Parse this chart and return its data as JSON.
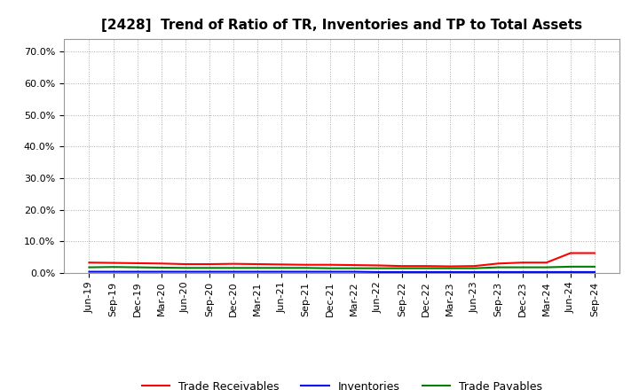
{
  "title": "[2428]  Trend of Ratio of TR, Inventories and TP to Total Assets",
  "x_labels": [
    "Jun-19",
    "Sep-19",
    "Dec-19",
    "Mar-20",
    "Jun-20",
    "Sep-20",
    "Dec-20",
    "Mar-21",
    "Jun-21",
    "Sep-21",
    "Dec-21",
    "Mar-22",
    "Jun-22",
    "Sep-22",
    "Dec-22",
    "Mar-23",
    "Jun-23",
    "Sep-23",
    "Dec-23",
    "Mar-24",
    "Jun-24",
    "Sep-24"
  ],
  "trade_receivables": [
    0.033,
    0.032,
    0.031,
    0.03,
    0.028,
    0.028,
    0.029,
    0.028,
    0.027,
    0.026,
    0.026,
    0.025,
    0.024,
    0.022,
    0.022,
    0.021,
    0.022,
    0.03,
    0.033,
    0.033,
    0.063,
    0.063
  ],
  "inventories": [
    0.004,
    0.004,
    0.004,
    0.004,
    0.004,
    0.004,
    0.004,
    0.004,
    0.004,
    0.004,
    0.004,
    0.004,
    0.003,
    0.003,
    0.003,
    0.003,
    0.003,
    0.003,
    0.003,
    0.003,
    0.003,
    0.003
  ],
  "trade_payables": [
    0.018,
    0.019,
    0.018,
    0.017,
    0.016,
    0.016,
    0.016,
    0.016,
    0.016,
    0.016,
    0.015,
    0.015,
    0.015,
    0.015,
    0.015,
    0.015,
    0.015,
    0.018,
    0.018,
    0.018,
    0.02,
    0.02
  ],
  "tr_color": "#ff0000",
  "inv_color": "#0000ff",
  "tp_color": "#008000",
  "background_color": "#ffffff",
  "plot_bg_color": "#ffffff",
  "grid_color": "#aaaaaa",
  "ylim": [
    0.0,
    0.74
  ],
  "yticks": [
    0.0,
    0.1,
    0.2,
    0.3,
    0.4,
    0.5,
    0.6,
    0.7
  ],
  "title_fontsize": 11,
  "tick_fontsize": 8,
  "legend_fontsize": 9
}
